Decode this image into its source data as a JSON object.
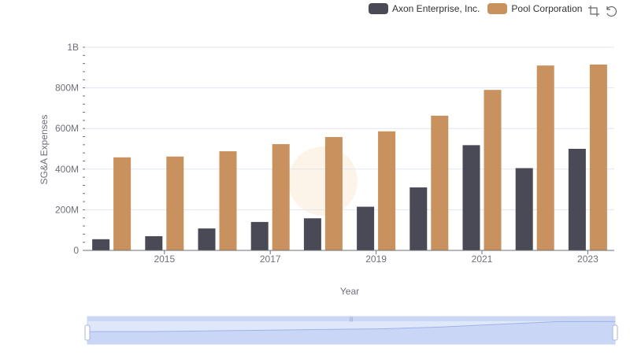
{
  "legend": {
    "items": [
      {
        "label": "Axon Enterprise, Inc.",
        "color": "#4a4a57"
      },
      {
        "label": "Pool Corporation",
        "color": "#c8915e"
      }
    ]
  },
  "toolbox": {
    "zoom_icon": "data-zoom-icon",
    "reset_icon": "restore-icon"
  },
  "chart_data": {
    "type": "bar",
    "xlabel": "Year",
    "ylabel": "SG&A Expenses",
    "categories": [
      "2014",
      "2015",
      "2016",
      "2017",
      "2018",
      "2019",
      "2020",
      "2021",
      "2022",
      "2023"
    ],
    "x_tick_labels": [
      "2015",
      "2017",
      "2019",
      "2021",
      "2023"
    ],
    "y_tick_labels": [
      "0",
      "200M",
      "400M",
      "600M",
      "800M",
      "1B"
    ],
    "ylim": [
      0,
      1000000000
    ],
    "grid": true,
    "legend_position": "top-right",
    "series": [
      {
        "name": "Axon Enterprise, Inc.",
        "color": "#4a4a57",
        "values": [
          55000000,
          70000000,
          108000000,
          140000000,
          158000000,
          215000000,
          310000000,
          518000000,
          405000000,
          500000000
        ]
      },
      {
        "name": "Pool Corporation",
        "color": "#c8915e",
        "values": [
          458000000,
          462000000,
          488000000,
          523000000,
          558000000,
          586000000,
          663000000,
          790000000,
          910000000,
          915000000
        ]
      }
    ]
  }
}
